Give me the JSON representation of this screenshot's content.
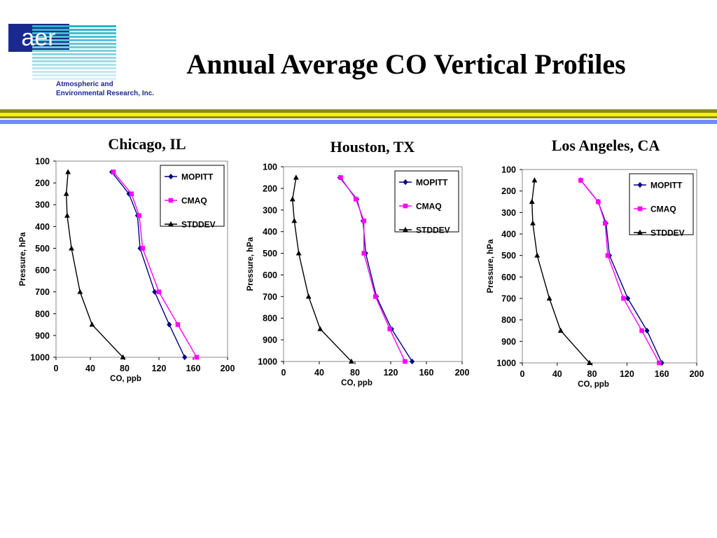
{
  "slide": {
    "title": "Annual Average CO Vertical Profiles",
    "logo": {
      "wordmark": "aer",
      "company_line1": "Atmospheric and",
      "company_line2": "Environmental Research, Inc."
    }
  },
  "colors": {
    "navy": "#1a2a8c",
    "olive": "#8c8a1e",
    "yellow": "#f2f200",
    "blue": "#6f8cff",
    "mopitt": "#000080",
    "cmaq": "#ff00ff",
    "stddev": "#000000",
    "teal": "#28b4c8"
  },
  "chart_data": [
    {
      "type": "line",
      "title": "Chicago, IL",
      "xlabel": "CO, ppb",
      "ylabel": "Pressure, hPa",
      "xlim": [
        0,
        200
      ],
      "ylim": [
        1000,
        100
      ],
      "y_reversed": true,
      "xticks": [
        "0",
        "40",
        "80",
        "120",
        "160",
        "200"
      ],
      "yticks": [
        "100",
        "200",
        "300",
        "400",
        "500",
        "600",
        "700",
        "800",
        "900",
        "1000"
      ],
      "grid": false,
      "legend": "top-right",
      "series": [
        {
          "name": "MOPITT",
          "marker": "diamond",
          "color": "#000080",
          "points": [
            [
              65,
              150
            ],
            [
              85,
              250
            ],
            [
              95,
              350
            ],
            [
              98,
              500
            ],
            [
              115,
              700
            ],
            [
              132,
              850
            ],
            [
              150,
              1000
            ]
          ]
        },
        {
          "name": "CMAQ",
          "marker": "square",
          "color": "#ff00ff",
          "points": [
            [
              67,
              150
            ],
            [
              88,
              250
            ],
            [
              97,
              350
            ],
            [
              101,
              500
            ],
            [
              120,
              700
            ],
            [
              142,
              850
            ],
            [
              164,
              1000
            ]
          ]
        },
        {
          "name": "STDDEV",
          "marker": "triangle",
          "color": "#000000",
          "points": [
            [
              14,
              150
            ],
            [
              12,
              250
            ],
            [
              13,
              350
            ],
            [
              18,
              500
            ],
            [
              28,
              700
            ],
            [
              42,
              850
            ],
            [
              78,
              1000
            ]
          ]
        }
      ]
    },
    {
      "type": "line",
      "title": "Houston, TX",
      "xlabel": "CO, ppb",
      "ylabel": "Pressure, hPa",
      "xlim": [
        0,
        200
      ],
      "ylim": [
        1000,
        100
      ],
      "y_reversed": true,
      "xticks": [
        "0",
        "40",
        "80",
        "120",
        "160",
        "200"
      ],
      "yticks": [
        "100",
        "200",
        "300",
        "400",
        "500",
        "600",
        "700",
        "800",
        "900",
        "1000"
      ],
      "grid": false,
      "legend": "top-right",
      "series": [
        {
          "name": "MOPITT",
          "marker": "diamond",
          "color": "#000080",
          "points": [
            [
              63,
              150
            ],
            [
              82,
              250
            ],
            [
              89,
              350
            ],
            [
              92,
              500
            ],
            [
              104,
              700
            ],
            [
              121,
              850
            ],
            [
              144,
              1000
            ]
          ]
        },
        {
          "name": "CMAQ",
          "marker": "square",
          "color": "#ff00ff",
          "points": [
            [
              64,
              150
            ],
            [
              81,
              250
            ],
            [
              90,
              350
            ],
            [
              90,
              500
            ],
            [
              103,
              700
            ],
            [
              119,
              850
            ],
            [
              136,
              1000
            ]
          ]
        },
        {
          "name": "STDDEV",
          "marker": "triangle",
          "color": "#000000",
          "points": [
            [
              14,
              150
            ],
            [
              10,
              250
            ],
            [
              12,
              350
            ],
            [
              17,
              500
            ],
            [
              28,
              700
            ],
            [
              41,
              850
            ],
            [
              76,
              1000
            ]
          ]
        }
      ]
    },
    {
      "type": "line",
      "title": "Los Angeles, CA",
      "xlabel": "CO, ppb",
      "ylabel": "Pressure, hPa",
      "xlim": [
        0,
        200
      ],
      "ylim": [
        1000,
        100
      ],
      "y_reversed": true,
      "xticks": [
        "0",
        "40",
        "80",
        "120",
        "160",
        "200"
      ],
      "yticks": [
        "100",
        "200",
        "300",
        "400",
        "500",
        "600",
        "700",
        "800",
        "900",
        "1000"
      ],
      "grid": false,
      "legend": "top-right",
      "series": [
        {
          "name": "MOPITT",
          "marker": "diamond",
          "color": "#000080",
          "points": [
            [
              67,
              150
            ],
            [
              87,
              250
            ],
            [
              96,
              350
            ],
            [
              100,
              500
            ],
            [
              121,
              700
            ],
            [
              143,
              850
            ],
            [
              160,
              1000
            ]
          ]
        },
        {
          "name": "CMAQ",
          "marker": "square",
          "color": "#ff00ff",
          "points": [
            [
              67,
              150
            ],
            [
              87,
              250
            ],
            [
              95,
              350
            ],
            [
              98,
              500
            ],
            [
              116,
              700
            ],
            [
              137,
              850
            ],
            [
              157,
              1000
            ]
          ]
        },
        {
          "name": "STDDEV",
          "marker": "triangle",
          "color": "#000000",
          "points": [
            [
              14,
              150
            ],
            [
              11,
              250
            ],
            [
              12,
              350
            ],
            [
              17,
              500
            ],
            [
              31,
              700
            ],
            [
              44,
              850
            ],
            [
              77,
              1000
            ]
          ]
        }
      ]
    }
  ]
}
